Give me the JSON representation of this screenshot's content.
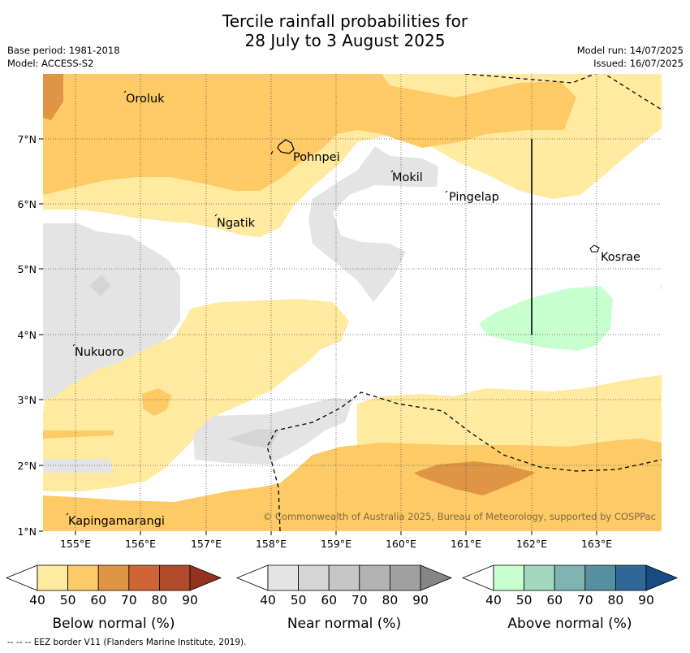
{
  "title_line1": "Tercile rainfall probabilities for",
  "title_line2": "28 July to 3 August 2025",
  "base_period": "Base period: 1981-2018",
  "model": "Model: ACCESS-S2",
  "model_run": "Model run: 14/07/2025",
  "issued": "Issued: 16/07/2025",
  "copyright": "© Commonwealth of Australia 2025, Bureau of Meteorology, supported by COSPPac",
  "footnote": "--  --  -- EEZ border V11 (Flanders Marine Institute, 2019).",
  "map": {
    "x_ticks": [
      "155°E",
      "156°E",
      "157°E",
      "158°E",
      "159°E",
      "160°E",
      "161°E",
      "162°E",
      "163°E"
    ],
    "y_ticks": [
      "7°N",
      "6°N",
      "5°N",
      "4°N",
      "3°N",
      "2°N",
      "1°N"
    ],
    "places": [
      "Oroluk",
      "Pohnpei",
      "Mokil",
      "Pingelap",
      "Ngatik",
      "Kosrae",
      "Nukuoro",
      "Kapingamarangi"
    ]
  },
  "legends": [
    {
      "label": "Below normal (%)",
      "ticks": [
        "40",
        "50",
        "60",
        "70",
        "80",
        "90"
      ],
      "colors": [
        "#ffeaa0",
        "#fdca65",
        "#e09545",
        "#cf6535",
        "#b04a2a",
        "#94321e"
      ]
    },
    {
      "label": "Near normal (%)",
      "ticks": [
        "40",
        "50",
        "60",
        "70",
        "80",
        "90"
      ],
      "colors": [
        "#e4e4e4",
        "#d5d5d5",
        "#c6c6c6",
        "#b2b2b2",
        "#a0a0a0",
        "#858585"
      ]
    },
    {
      "label": "Above normal (%)",
      "ticks": [
        "40",
        "50",
        "60",
        "70",
        "80",
        "90"
      ],
      "colors": [
        "#c8ffcf",
        "#a2d8c0",
        "#7fb5b0",
        "#5690a0",
        "#2f6898",
        "#1a4a82"
      ]
    }
  ],
  "colors": {
    "below_40": "#ffeaa0",
    "below_50": "#fdca65",
    "below_60": "#e09545",
    "near_40": "#e4e4e4",
    "above_40": "#c8ffcf"
  }
}
